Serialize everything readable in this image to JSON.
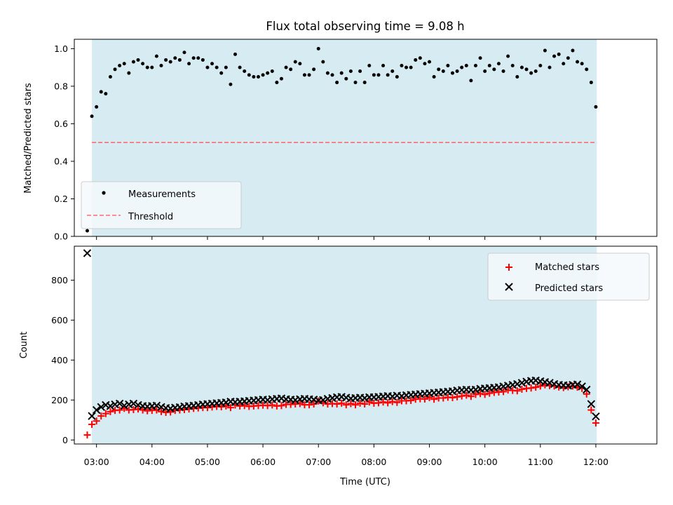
{
  "figure": {
    "title": "Flux total observing time = 9.08 h",
    "xlabel": "Time (UTC)"
  },
  "colors": {
    "band": "#add8e6",
    "threshold": "#ff6b6b",
    "measurements": "#000000",
    "matched": "#ff0000",
    "predicted": "#000000"
  },
  "chart_data": [
    {
      "type": "scatter",
      "ylabel": "Matched/Predicted stars",
      "xlim": [
        "02:36",
        "13:06"
      ],
      "ylim": [
        0,
        1.05
      ],
      "yticks": [
        0.0,
        0.2,
        0.4,
        0.6,
        0.8,
        1.0
      ],
      "ytick_labels": [
        "0.0",
        "0.2",
        "0.4",
        "0.6",
        "0.8",
        "1.0"
      ],
      "xticks": [
        "03:00",
        "04:00",
        "05:00",
        "06:00",
        "07:00",
        "08:00",
        "09:00",
        "10:00",
        "11:00",
        "12:00"
      ],
      "observing_window": [
        "02:55",
        "12:01"
      ],
      "legend": {
        "position": "lower-left",
        "entries": [
          "Measurements",
          "Threshold"
        ]
      },
      "threshold": 0.5,
      "series": [
        {
          "name": "Measurements",
          "marker": "dot",
          "x": [
            "02:50",
            "02:55",
            "03:00",
            "03:05",
            "03:10",
            "03:15",
            "03:20",
            "03:25",
            "03:30",
            "03:35",
            "03:40",
            "03:45",
            "03:50",
            "03:55",
            "04:00",
            "04:05",
            "04:10",
            "04:15",
            "04:20",
            "04:25",
            "04:30",
            "04:35",
            "04:40",
            "04:45",
            "04:50",
            "04:55",
            "05:00",
            "05:05",
            "05:10",
            "05:15",
            "05:20",
            "05:25",
            "05:30",
            "05:35",
            "05:40",
            "05:45",
            "05:50",
            "05:55",
            "06:00",
            "06:05",
            "06:10",
            "06:15",
            "06:20",
            "06:25",
            "06:30",
            "06:35",
            "06:40",
            "06:45",
            "06:50",
            "06:55",
            "07:00",
            "07:05",
            "07:10",
            "07:15",
            "07:20",
            "07:25",
            "07:30",
            "07:35",
            "07:40",
            "07:45",
            "07:50",
            "07:55",
            "08:00",
            "08:05",
            "08:10",
            "08:15",
            "08:20",
            "08:25",
            "08:30",
            "08:35",
            "08:40",
            "08:45",
            "08:50",
            "08:55",
            "09:00",
            "09:05",
            "09:10",
            "09:15",
            "09:20",
            "09:25",
            "09:30",
            "09:35",
            "09:40",
            "09:45",
            "09:50",
            "09:55",
            "10:00",
            "10:05",
            "10:10",
            "10:15",
            "10:20",
            "10:25",
            "10:30",
            "10:35",
            "10:40",
            "10:45",
            "10:50",
            "10:55",
            "11:00",
            "11:05",
            "11:10",
            "11:15",
            "11:20",
            "11:25",
            "11:30",
            "11:35",
            "11:40",
            "11:45",
            "11:50",
            "11:55",
            "12:00"
          ],
          "y": [
            0.03,
            0.64,
            0.69,
            0.77,
            0.76,
            0.85,
            0.89,
            0.91,
            0.92,
            0.87,
            0.93,
            0.94,
            0.92,
            0.9,
            0.9,
            0.96,
            0.91,
            0.94,
            0.93,
            0.95,
            0.94,
            0.98,
            0.92,
            0.95,
            0.95,
            0.94,
            0.9,
            0.92,
            0.9,
            0.87,
            0.9,
            0.81,
            0.97,
            0.9,
            0.88,
            0.86,
            0.85,
            0.85,
            0.86,
            0.87,
            0.88,
            0.82,
            0.84,
            0.9,
            0.89,
            0.93,
            0.92,
            0.86,
            0.86,
            0.89,
            1.0,
            0.93,
            0.87,
            0.86,
            0.82,
            0.87,
            0.84,
            0.88,
            0.82,
            0.88,
            0.82,
            0.91,
            0.86,
            0.86,
            0.91,
            0.86,
            0.88,
            0.85,
            0.91,
            0.9,
            0.9,
            0.94,
            0.95,
            0.92,
            0.93,
            0.85,
            0.89,
            0.88,
            0.91,
            0.87,
            0.88,
            0.9,
            0.91,
            0.83,
            0.91,
            0.95,
            0.88,
            0.91,
            0.89,
            0.92,
            0.88,
            0.96,
            0.91,
            0.85,
            0.9,
            0.89,
            0.87,
            0.88,
            0.91,
            0.99,
            0.9,
            0.96,
            0.97,
            0.92,
            0.95,
            0.99,
            0.93,
            0.92,
            0.89,
            0.82,
            0.69
          ]
        },
        {
          "name": "Threshold",
          "style": "dashed",
          "x": [
            "02:55",
            "12:01"
          ],
          "y": [
            0.5,
            0.5
          ]
        }
      ]
    },
    {
      "type": "scatter",
      "ylabel": "Count",
      "xlabel": "Time (UTC)",
      "xlim": [
        "02:36",
        "13:06"
      ],
      "ylim": [
        -20,
        970
      ],
      "yticks": [
        0,
        200,
        400,
        600,
        800
      ],
      "ytick_labels": [
        "0",
        "200",
        "400",
        "600",
        "800"
      ],
      "xticks": [
        "03:00",
        "04:00",
        "05:00",
        "06:00",
        "07:00",
        "08:00",
        "09:00",
        "10:00",
        "11:00",
        "12:00"
      ],
      "xtick_labels": [
        "03:00",
        "04:00",
        "05:00",
        "06:00",
        "07:00",
        "08:00",
        "09:00",
        "10:00",
        "11:00",
        "12:00"
      ],
      "observing_window": [
        "02:55",
        "12:01"
      ],
      "legend": {
        "position": "upper-right",
        "entries": [
          "Matched stars",
          "Predicted stars"
        ]
      },
      "series": [
        {
          "name": "Matched stars",
          "marker": "plus",
          "x": [
            "02:50",
            "02:55",
            "03:00",
            "03:05",
            "03:10",
            "03:15",
            "03:20",
            "03:25",
            "03:30",
            "03:35",
            "03:40",
            "03:45",
            "03:50",
            "03:55",
            "04:00",
            "04:05",
            "04:10",
            "04:15",
            "04:20",
            "04:25",
            "04:30",
            "04:35",
            "04:40",
            "04:45",
            "04:50",
            "04:55",
            "05:00",
            "05:05",
            "05:10",
            "05:15",
            "05:20",
            "05:25",
            "05:30",
            "05:35",
            "05:40",
            "05:45",
            "05:50",
            "05:55",
            "06:00",
            "06:05",
            "06:10",
            "06:15",
            "06:20",
            "06:25",
            "06:30",
            "06:35",
            "06:40",
            "06:45",
            "06:50",
            "06:55",
            "07:00",
            "07:05",
            "07:10",
            "07:15",
            "07:20",
            "07:25",
            "07:30",
            "07:35",
            "07:40",
            "07:45",
            "07:50",
            "07:55",
            "08:00",
            "08:05",
            "08:10",
            "08:15",
            "08:20",
            "08:25",
            "08:30",
            "08:35",
            "08:40",
            "08:45",
            "08:50",
            "08:55",
            "09:00",
            "09:05",
            "09:10",
            "09:15",
            "09:20",
            "09:25",
            "09:30",
            "09:35",
            "09:40",
            "09:45",
            "09:50",
            "09:55",
            "10:00",
            "10:05",
            "10:10",
            "10:15",
            "10:20",
            "10:25",
            "10:30",
            "10:35",
            "10:40",
            "10:45",
            "10:50",
            "10:55",
            "11:00",
            "11:05",
            "11:10",
            "11:15",
            "11:20",
            "11:25",
            "11:30",
            "11:35",
            "11:40",
            "11:45",
            "11:50",
            "11:55",
            "12:00"
          ],
          "y": [
            25,
            78,
            95,
            120,
            132,
            142,
            148,
            150,
            158,
            150,
            152,
            155,
            150,
            146,
            148,
            150,
            142,
            138,
            140,
            148,
            150,
            152,
            155,
            158,
            160,
            162,
            162,
            165,
            168,
            166,
            170,
            162,
            175,
            170,
            172,
            168,
            170,
            172,
            174,
            172,
            175,
            170,
            172,
            178,
            178,
            180,
            182,
            176,
            176,
            180,
            195,
            186,
            180,
            182,
            180,
            184,
            176,
            182,
            176,
            184,
            180,
            190,
            184,
            186,
            190,
            186,
            192,
            188,
            196,
            196,
            198,
            204,
            206,
            205,
            212,
            204,
            210,
            210,
            214,
            212,
            216,
            220,
            224,
            218,
            228,
            232,
            228,
            234,
            238,
            240,
            242,
            250,
            248,
            246,
            254,
            258,
            260,
            264,
            270,
            276,
            272,
            270,
            265,
            262,
            266,
            270,
            264,
            258,
            230,
            150,
            85
          ]
        },
        {
          "name": "Predicted stars",
          "marker": "x",
          "x": [
            "02:50",
            "02:55",
            "03:00",
            "03:05",
            "03:10",
            "03:15",
            "03:20",
            "03:25",
            "03:30",
            "03:35",
            "03:40",
            "03:45",
            "03:50",
            "03:55",
            "04:00",
            "04:05",
            "04:10",
            "04:15",
            "04:20",
            "04:25",
            "04:30",
            "04:35",
            "04:40",
            "04:45",
            "04:50",
            "04:55",
            "05:00",
            "05:05",
            "05:10",
            "05:15",
            "05:20",
            "05:25",
            "05:30",
            "05:35",
            "05:40",
            "05:45",
            "05:50",
            "05:55",
            "06:00",
            "06:05",
            "06:10",
            "06:15",
            "06:20",
            "06:25",
            "06:30",
            "06:35",
            "06:40",
            "06:45",
            "06:50",
            "06:55",
            "07:00",
            "07:05",
            "07:10",
            "07:15",
            "07:20",
            "07:25",
            "07:30",
            "07:35",
            "07:40",
            "07:45",
            "07:50",
            "07:55",
            "08:00",
            "08:05",
            "08:10",
            "08:15",
            "08:20",
            "08:25",
            "08:30",
            "08:35",
            "08:40",
            "08:45",
            "08:50",
            "08:55",
            "09:00",
            "09:05",
            "09:10",
            "09:15",
            "09:20",
            "09:25",
            "09:30",
            "09:35",
            "09:40",
            "09:45",
            "09:50",
            "09:55",
            "10:00",
            "10:05",
            "10:10",
            "10:15",
            "10:20",
            "10:25",
            "10:30",
            "10:35",
            "10:40",
            "10:45",
            "10:50",
            "10:55",
            "11:00",
            "11:05",
            "11:10",
            "11:15",
            "11:20",
            "11:25",
            "11:30",
            "11:35",
            "11:40",
            "11:45",
            "11:50",
            "11:55",
            "12:00"
          ],
          "y": [
            935,
            120,
            150,
            165,
            175,
            170,
            178,
            182,
            172,
            178,
            182,
            175,
            170,
            168,
            170,
            172,
            165,
            160,
            158,
            162,
            164,
            168,
            170,
            172,
            175,
            178,
            180,
            182,
            184,
            186,
            188,
            192,
            190,
            192,
            194,
            196,
            198,
            200,
            202,
            200,
            204,
            206,
            208,
            204,
            202,
            200,
            204,
            206,
            204,
            202,
            198,
            200,
            206,
            210,
            214,
            216,
            212,
            208,
            210,
            212,
            210,
            214,
            214,
            216,
            218,
            220,
            218,
            222,
            220,
            224,
            226,
            228,
            230,
            232,
            234,
            236,
            238,
            240,
            242,
            244,
            248,
            250,
            252,
            250,
            252,
            256,
            258,
            260,
            262,
            264,
            268,
            272,
            276,
            280,
            286,
            292,
            296,
            298,
            294,
            290,
            286,
            280,
            276,
            274,
            272,
            276,
            278,
            268,
            252,
            180,
            118
          ]
        }
      ]
    }
  ]
}
